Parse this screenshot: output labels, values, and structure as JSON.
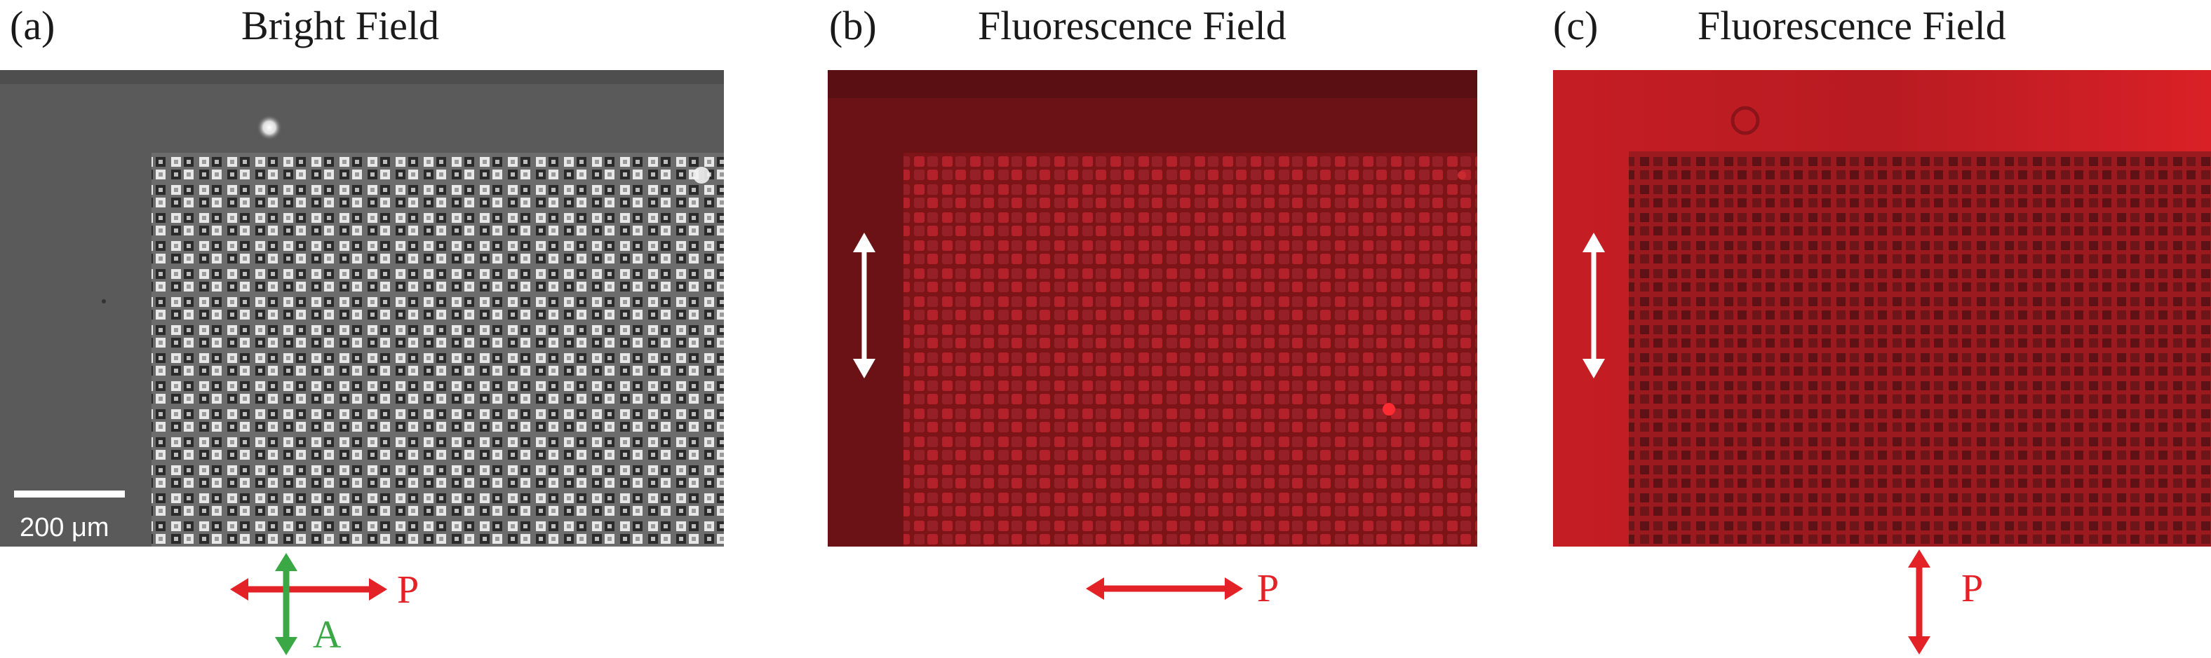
{
  "panels": [
    {
      "label": "(a)",
      "title": "Bright Field",
      "scalebar": "200 μm",
      "polarizer": "P",
      "analyzer": "A"
    },
    {
      "label": "(b)",
      "title": "Fluorescence Field",
      "polarizer": "P"
    },
    {
      "label": "(c)",
      "title": "Fluorescence Field",
      "polarizer": "P"
    }
  ],
  "colors": {
    "polarizer": "#e32227",
    "analyzer": "#3aa845",
    "fluor_b": "#8e1a1f",
    "fluor_c": "#cc1d23"
  }
}
